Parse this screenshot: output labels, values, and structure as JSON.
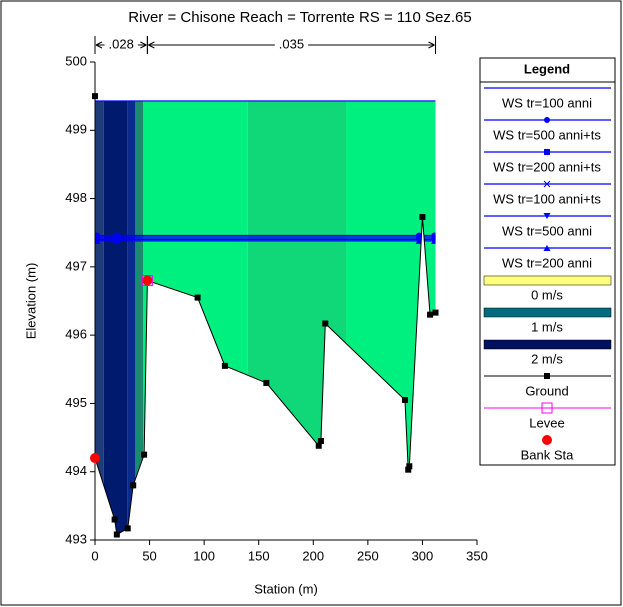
{
  "chart_data": {
    "type": "cross-section",
    "title": "River = Chisone   Reach = Torrente    RS = 110    Sez.65",
    "xlabel": "Station (m)",
    "ylabel": "Elevation (m)",
    "xlim": [
      0,
      350
    ],
    "ylim": [
      493,
      500
    ],
    "xticks": [
      0,
      50,
      100,
      150,
      200,
      250,
      300,
      350
    ],
    "yticks": [
      493,
      494,
      495,
      496,
      497,
      498,
      499,
      500
    ],
    "manning": [
      {
        "label": ".028",
        "range": [
          0,
          48
        ]
      },
      {
        "label": ".035",
        "range": [
          48,
          312
        ]
      }
    ],
    "legend_title": "Legend",
    "water_surfaces": [
      {
        "name": "WS tr=100 anni",
        "color": "#0000ff",
        "marker": "none",
        "value": 499.43
      },
      {
        "name": "WS tr=500 anni+ts",
        "color": "#0000ff",
        "marker": "circle",
        "value": 497.46
      },
      {
        "name": "WS tr=200 anni+ts",
        "color": "#0000ff",
        "marker": "square",
        "value": 497.44
      },
      {
        "name": "WS tr=100 anni+ts",
        "color": "#0000ff",
        "marker": "x",
        "value": 497.42
      },
      {
        "name": "WS tr=500 anni",
        "color": "#0000ff",
        "marker": "tri-down",
        "value": 497.4
      },
      {
        "name": "WS tr=200 anni",
        "color": "#0000ff",
        "marker": "tri-up",
        "value": 497.38
      }
    ],
    "velocity_legend": [
      {
        "name": "0 m/s",
        "color": "#ffff80"
      },
      {
        "name": "1 m/s",
        "color": "#006a80"
      },
      {
        "name": "2 m/s",
        "color": "#001060"
      }
    ],
    "velocity_bands": [
      {
        "range": [
          0,
          8
        ],
        "color": "#203c78"
      },
      {
        "range": [
          8,
          30
        ],
        "color": "#001a6e"
      },
      {
        "range": [
          30,
          37
        ],
        "color": "#0a2a90"
      },
      {
        "range": [
          37,
          44
        ],
        "color": "#1a8a70"
      },
      {
        "range": [
          44,
          140
        ],
        "color": "#00f080"
      },
      {
        "range": [
          140,
          230
        ],
        "color": "#10d878"
      },
      {
        "range": [
          230,
          320
        ],
        "color": "#00f080"
      }
    ],
    "ground": {
      "name": "Ground",
      "color": "#000000",
      "x": [
        0,
        0,
        18,
        20,
        30,
        35,
        45,
        48,
        94,
        119,
        157,
        205,
        207,
        211,
        284,
        287,
        288,
        300,
        307,
        312
      ],
      "values": [
        499.5,
        494.2,
        493.3,
        493.08,
        493.17,
        493.8,
        494.25,
        496.8,
        496.55,
        495.55,
        495.3,
        494.38,
        494.45,
        496.17,
        495.05,
        494.03,
        494.08,
        497.73,
        496.3,
        496.33
      ]
    },
    "levee": {
      "name": "Levee",
      "color": "#ff00ff",
      "x": [
        48
      ],
      "values": [
        496.8
      ]
    },
    "bank_sta": {
      "name": "Bank Sta",
      "color": "#ff0000",
      "x": [
        0,
        48
      ],
      "values": [
        494.2,
        496.8
      ]
    }
  }
}
